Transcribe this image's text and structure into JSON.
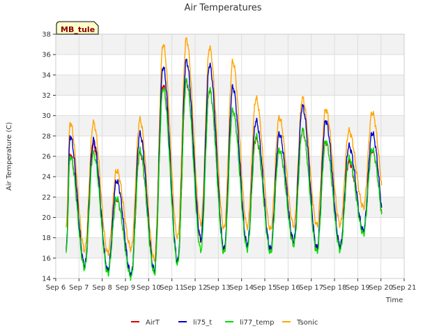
{
  "chart_data": {
    "type": "line",
    "title": "Air Temperatures",
    "xlabel": "Time",
    "ylabel": "Air Temperature (C)",
    "site_label": "MB_tule",
    "ylim": [
      14,
      38
    ],
    "yticks": [
      14,
      16,
      18,
      20,
      22,
      24,
      26,
      28,
      30,
      32,
      34,
      36,
      38
    ],
    "x_tick_labels": [
      "Sep 6",
      "Sep 7",
      "Sep 8",
      "Sep 9",
      "Sep 10",
      "Sep 11",
      "Sep 12",
      "Sep 13",
      "Sep 14",
      "Sep 15",
      "Sep 16",
      "Sep 17",
      "Sep 18",
      "Sep 19",
      "Sep 20",
      "Sep 21"
    ],
    "xlim_days": [
      6,
      21
    ],
    "grid": true,
    "legend_position": "bottom",
    "series": [
      {
        "name": "AirT",
        "color": "#dd0000",
        "min": [
          16.7,
          15.2,
          14.7,
          14.3,
          14.7,
          15.6,
          17.8,
          16.8,
          17.2,
          16.8,
          17.6,
          16.9,
          17.1,
          18.6,
          17.9,
          19.5
        ],
        "max": [
          26.2,
          27.2,
          21.8,
          26.4,
          33.0,
          33.3,
          32.5,
          30.5,
          27.8,
          26.6,
          28.5,
          27.4,
          25.5,
          26.6
        ]
      },
      {
        "name": "li75_t",
        "color": "#0000cc",
        "min": [
          16.8,
          15.3,
          14.8,
          14.4,
          14.8,
          15.7,
          17.9,
          16.9,
          17.3,
          16.9,
          17.7,
          17.0,
          17.2,
          18.7,
          18.0,
          19.6
        ],
        "max": [
          28.0,
          27.6,
          23.6,
          28.2,
          34.8,
          35.4,
          35.0,
          32.8,
          29.5,
          28.2,
          30.9,
          29.5,
          27.0,
          28.3
        ]
      },
      {
        "name": "li77_temp",
        "color": "#00dd00",
        "min": [
          16.5,
          15.0,
          14.5,
          14.1,
          14.5,
          15.4,
          16.8,
          16.5,
          16.9,
          16.5,
          17.3,
          16.6,
          16.8,
          18.4,
          17.7,
          19.3
        ],
        "max": [
          26.0,
          26.3,
          21.9,
          26.6,
          32.7,
          33.5,
          32.6,
          30.5,
          28.0,
          26.6,
          28.6,
          27.5,
          25.8,
          26.7
        ]
      },
      {
        "name": "Tsonic",
        "color": "#ffa500",
        "min": [
          19.0,
          16.8,
          16.5,
          16.9,
          15.8,
          18.0,
          19.4,
          18.9,
          19.1,
          18.8,
          19.2,
          19.2,
          19.3,
          21.0,
          20.3,
          22.5
        ],
        "max": [
          29.3,
          29.3,
          24.6,
          29.6,
          37.0,
          37.5,
          36.7,
          35.3,
          31.7,
          29.8,
          31.7,
          30.6,
          28.5,
          30.3
        ]
      }
    ]
  }
}
